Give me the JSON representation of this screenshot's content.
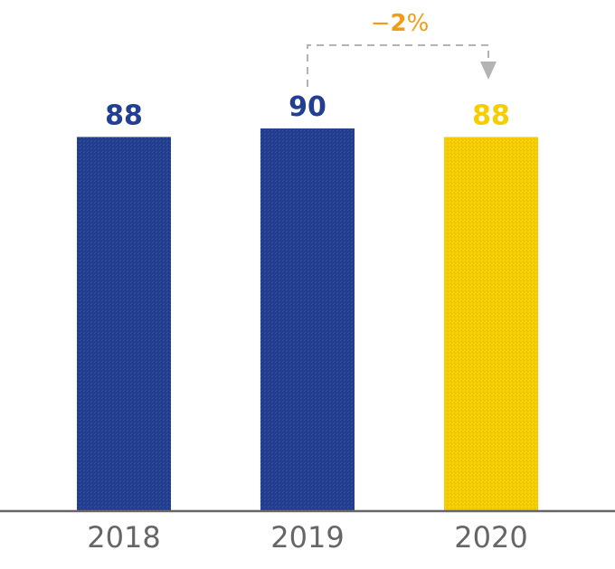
{
  "chart_data": {
    "type": "bar",
    "categories": [
      "2018",
      "2019",
      "2020"
    ],
    "values": [
      88,
      90,
      88
    ],
    "value_labels": [
      "88",
      "90",
      "88"
    ],
    "bar_colors": [
      "#233f91",
      "#233f91",
      "#f5cd00"
    ],
    "label_colors": [
      "#233f91",
      "#233f91",
      "#f5cd00"
    ],
    "title": "",
    "xlabel": "",
    "ylabel": "",
    "ylim": [
      0,
      90
    ],
    "grid": false,
    "annotation": {
      "text_prefix": "−",
      "text_value": "2",
      "text_suffix": "%",
      "from": "2019",
      "to": "2020",
      "color": "#f39c12",
      "arrow_color": "#b3b3b3"
    }
  },
  "colors": {
    "axis": "#666666"
  }
}
